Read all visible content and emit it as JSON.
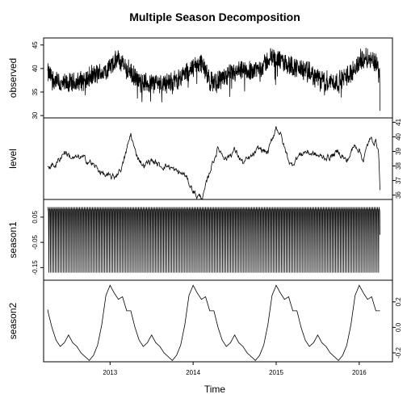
{
  "chart_data": {
    "type": "line",
    "title": "Multiple Season Decomposition",
    "xlabel": "Time",
    "x_range": [
      2012.2,
      2016.4
    ],
    "x_ticks": [
      2013,
      2014,
      2015,
      2016
    ],
    "x_tick_labels": [
      "2013",
      "2014",
      "2015",
      "2016"
    ],
    "start_year": 2012.25,
    "end_year": 2016.25,
    "panels": [
      {
        "ylabel": "observed",
        "ylim": [
          29.5,
          46.5
        ],
        "y_ticks": [
          30,
          35,
          40,
          45
        ],
        "y_tick_labels": [
          "30",
          "35",
          "40",
          "45"
        ],
        "style": "noisy",
        "anchors": [
          [
            2012.25,
            39
          ],
          [
            2012.4,
            36.5
          ],
          [
            2012.6,
            37
          ],
          [
            2012.8,
            38.5
          ],
          [
            2012.95,
            39.5
          ],
          [
            2013.1,
            42
          ],
          [
            2013.2,
            40
          ],
          [
            2013.35,
            37
          ],
          [
            2013.55,
            37
          ],
          [
            2013.75,
            37
          ],
          [
            2013.95,
            39.5
          ],
          [
            2014.1,
            41.5
          ],
          [
            2014.2,
            37
          ],
          [
            2014.35,
            38
          ],
          [
            2014.5,
            39
          ],
          [
            2014.65,
            39.5
          ],
          [
            2014.8,
            40
          ],
          [
            2014.95,
            42.5
          ],
          [
            2015.05,
            41.5
          ],
          [
            2015.2,
            40.5
          ],
          [
            2015.35,
            39.5
          ],
          [
            2015.55,
            37.5
          ],
          [
            2015.75,
            37
          ],
          [
            2015.95,
            40
          ],
          [
            2016.05,
            42.5
          ],
          [
            2016.15,
            42
          ],
          [
            2016.22,
            41
          ],
          [
            2016.25,
            37
          ]
        ],
        "noise_amp": 2.6
      },
      {
        "ylabel": "level",
        "ylim": [
          35.7,
          41.3
        ],
        "y_ticks": [
          36,
          37,
          38,
          39,
          40,
          41
        ],
        "y_tick_labels": [
          "36",
          "37",
          "38",
          "39",
          "40",
          "41"
        ],
        "style": "smooth-wiggle",
        "anchors": [
          [
            2012.25,
            38.0
          ],
          [
            2012.35,
            38.1
          ],
          [
            2012.45,
            39.0
          ],
          [
            2012.55,
            38.5
          ],
          [
            2012.65,
            38.6
          ],
          [
            2012.75,
            38.3
          ],
          [
            2012.85,
            37.8
          ],
          [
            2012.95,
            37.3
          ],
          [
            2013.05,
            37.2
          ],
          [
            2013.15,
            38.0
          ],
          [
            2013.25,
            40.2
          ],
          [
            2013.3,
            39.0
          ],
          [
            2013.4,
            38.0
          ],
          [
            2013.5,
            38.4
          ],
          [
            2013.6,
            38.0
          ],
          [
            2013.7,
            38.0
          ],
          [
            2013.8,
            37.6
          ],
          [
            2013.9,
            37.4
          ],
          [
            2013.98,
            36.5
          ],
          [
            2014.05,
            35.9
          ],
          [
            2014.12,
            35.9
          ],
          [
            2014.22,
            38.0
          ],
          [
            2014.3,
            39.2
          ],
          [
            2014.4,
            38.5
          ],
          [
            2014.5,
            39.1
          ],
          [
            2014.6,
            38.2
          ],
          [
            2014.7,
            38.6
          ],
          [
            2014.8,
            39.2
          ],
          [
            2014.9,
            38.9
          ],
          [
            2015.0,
            40.7
          ],
          [
            2015.05,
            40.2
          ],
          [
            2015.1,
            39.2
          ],
          [
            2015.18,
            38.0
          ],
          [
            2015.25,
            38.6
          ],
          [
            2015.35,
            39.0
          ],
          [
            2015.45,
            38.8
          ],
          [
            2015.55,
            38.6
          ],
          [
            2015.65,
            38.6
          ],
          [
            2015.75,
            39.0
          ],
          [
            2015.85,
            38.3
          ],
          [
            2015.95,
            39.5
          ],
          [
            2016.0,
            39.1
          ],
          [
            2016.05,
            38.4
          ],
          [
            2016.12,
            39.8
          ],
          [
            2016.2,
            39.7
          ],
          [
            2016.23,
            39.2
          ],
          [
            2016.25,
            36.5
          ]
        ],
        "noise_amp": 0.35
      },
      {
        "ylabel": "season1",
        "ylim": [
          -0.2,
          0.12
        ],
        "y_ticks": [
          -0.15,
          -0.05,
          0.05
        ],
        "y_tick_labels": [
          "-0.15",
          "-0.05",
          "0.05"
        ],
        "style": "weekly",
        "weekly_pattern": [
          0.09,
          0.08,
          0.08,
          0.07,
          -0.02,
          -0.17,
          0.08
        ]
      },
      {
        "ylabel": "season2",
        "ylim": [
          -0.27,
          0.37
        ],
        "y_ticks": [
          -0.2,
          0.0,
          0.2
        ],
        "y_tick_labels": [
          "-0.2",
          "0.0",
          "0.2"
        ],
        "style": "annual",
        "annual_anchors": [
          [
            0.0,
            0.33
          ],
          [
            0.05,
            0.27
          ],
          [
            0.1,
            0.22
          ],
          [
            0.15,
            0.24
          ],
          [
            0.2,
            0.13
          ],
          [
            0.25,
            0.13
          ],
          [
            0.3,
            0.0
          ],
          [
            0.35,
            -0.1
          ],
          [
            0.4,
            -0.15
          ],
          [
            0.45,
            -0.12
          ],
          [
            0.5,
            -0.06
          ],
          [
            0.55,
            -0.12
          ],
          [
            0.6,
            -0.15
          ],
          [
            0.65,
            -0.2
          ],
          [
            0.7,
            -0.23
          ],
          [
            0.75,
            -0.26
          ],
          [
            0.8,
            -0.22
          ],
          [
            0.85,
            -0.14
          ],
          [
            0.9,
            0.02
          ],
          [
            0.95,
            0.25
          ],
          [
            1.0,
            0.33
          ]
        ]
      }
    ]
  }
}
